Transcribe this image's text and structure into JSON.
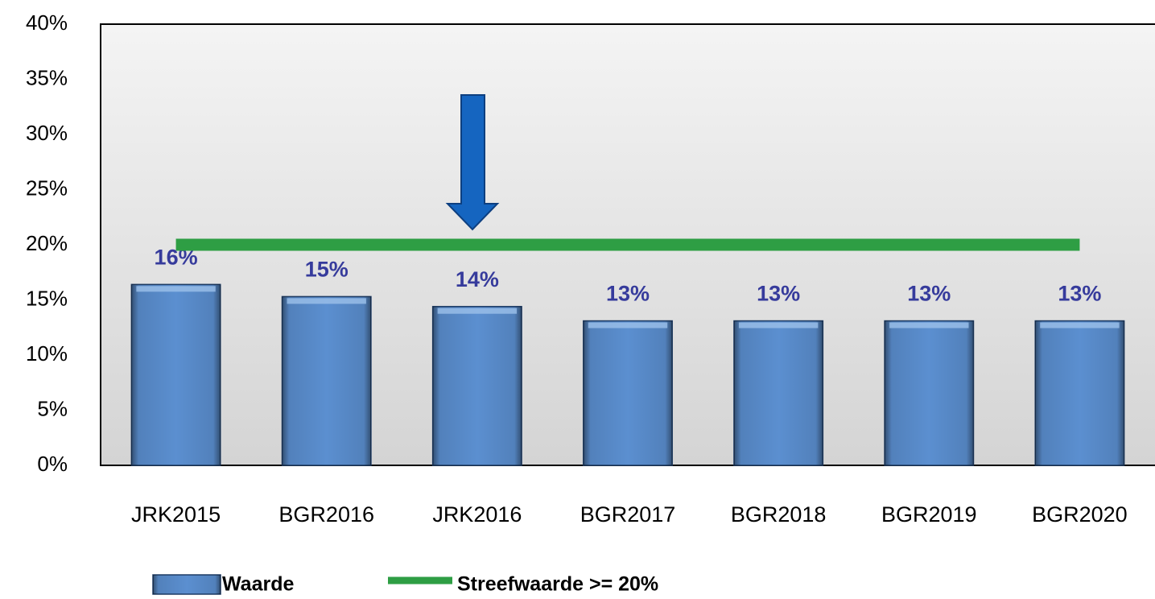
{
  "chart_data": {
    "type": "bar",
    "categories": [
      "JRK2015",
      "BGR2016",
      "JRK2016",
      "BGR2017",
      "BGR2018",
      "BGR2019",
      "BGR2020"
    ],
    "series": [
      {
        "name": "Waarde",
        "color": "#5b8fd0",
        "type": "bar",
        "values": [
          16.4,
          15.3,
          14.4,
          13.1,
          13.1,
          13.1,
          13.1
        ],
        "value_labels": [
          "16%",
          "15%",
          "14%",
          "13%",
          "13%",
          "13%",
          "13%"
        ]
      },
      {
        "name": "Streefwaarde >= 20%",
        "color": "#2e9e44",
        "type": "line",
        "values": [
          20,
          20,
          20,
          20,
          20,
          20,
          20
        ]
      }
    ],
    "ylim": [
      0,
      40
    ],
    "yticks": [
      {
        "value": 0,
        "label": "0%"
      },
      {
        "value": 5,
        "label": "5%"
      },
      {
        "value": 10,
        "label": "10%"
      },
      {
        "value": 15,
        "label": "15%"
      },
      {
        "value": 20,
        "label": "20%"
      },
      {
        "value": 25,
        "label": "25%"
      },
      {
        "value": 30,
        "label": "30%"
      },
      {
        "value": 35,
        "label": "35%"
      },
      {
        "value": 40,
        "label": "40%"
      }
    ],
    "grid": false,
    "legend": "bottom"
  }
}
